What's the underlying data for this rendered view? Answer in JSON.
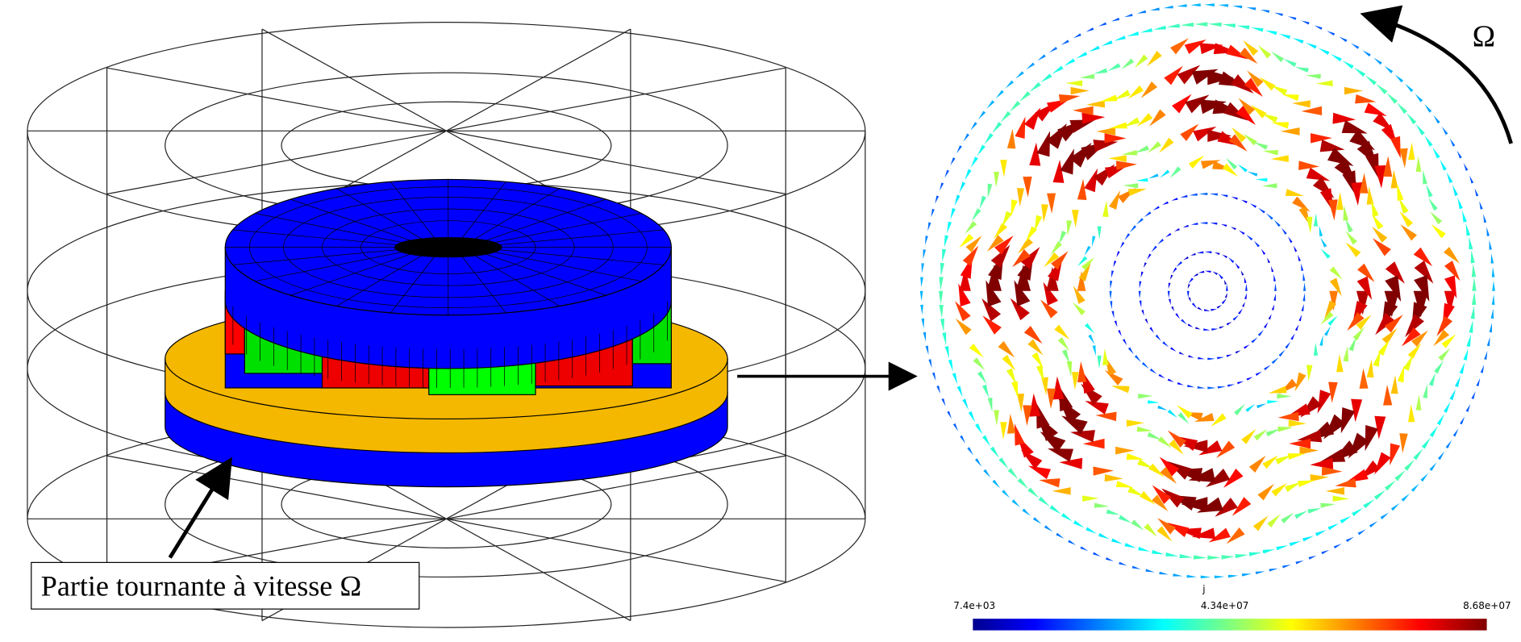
{
  "left_panel": {
    "label": "Partie tournante à vitesse Ω"
  },
  "right_panel": {
    "rotation_label": "Ω",
    "colorbar": {
      "title": "j",
      "tick_labels": [
        "7.4e+03",
        "4.34e+07",
        "8.68e+07"
      ]
    }
  }
}
